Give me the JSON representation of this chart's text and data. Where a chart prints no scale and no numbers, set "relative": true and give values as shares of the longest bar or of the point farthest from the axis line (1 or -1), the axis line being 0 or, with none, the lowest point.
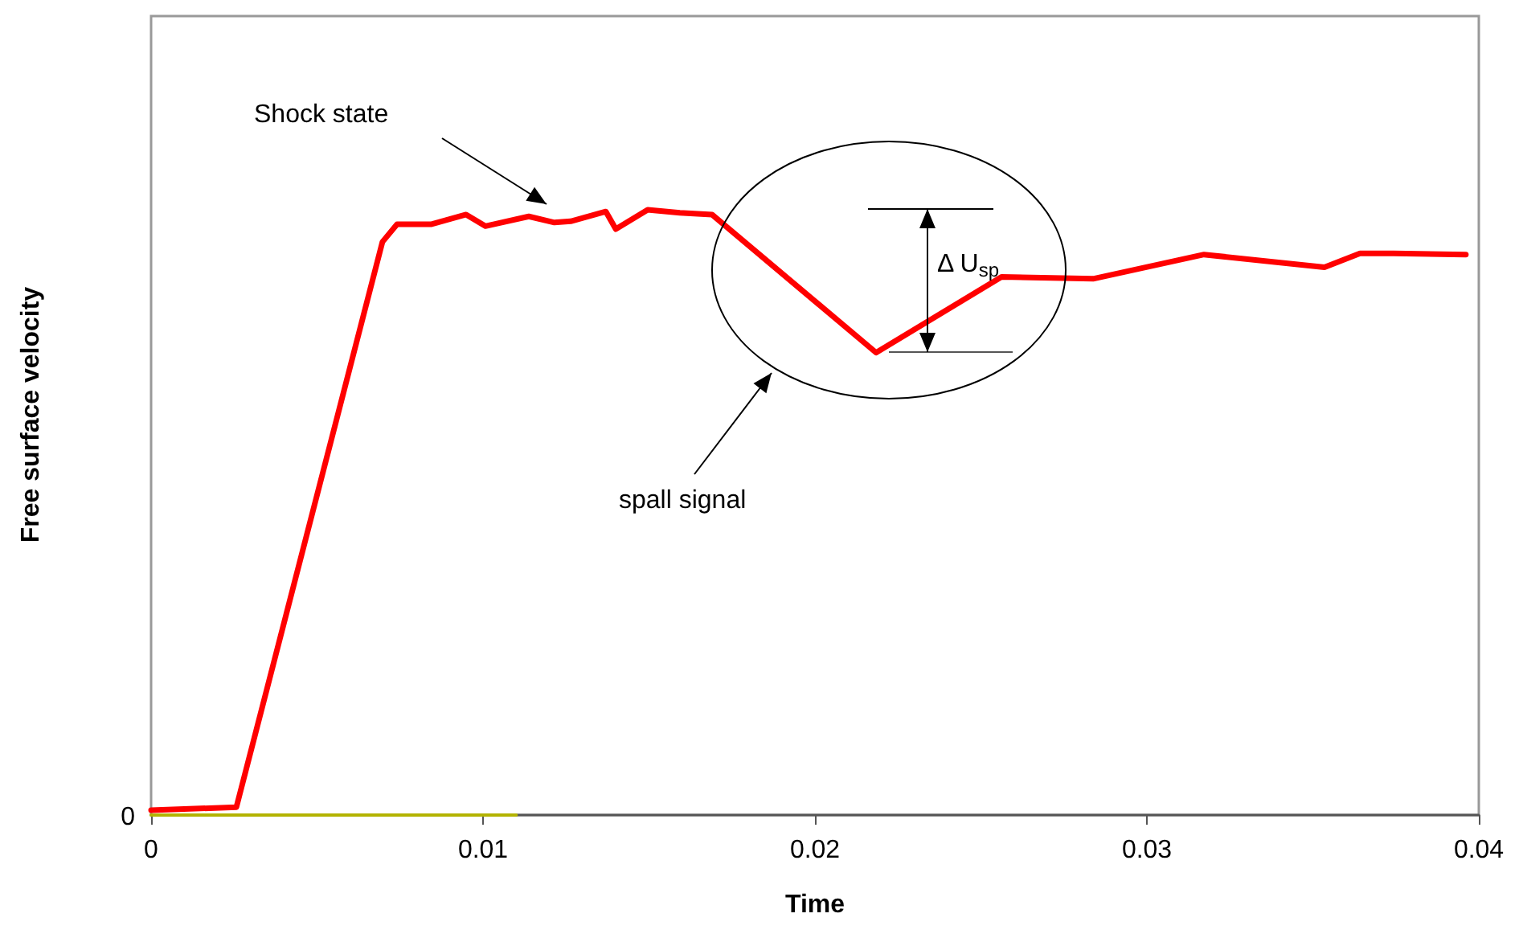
{
  "chart_data": {
    "type": "line",
    "xlabel": "Time",
    "ylabel": "Free surface velocity",
    "relative": true,
    "x": [
      0,
      0.00257,
      0.00697,
      0.00741,
      0.00843,
      0.00949,
      0.01007,
      0.01138,
      0.01215,
      0.01264,
      0.0137,
      0.014,
      0.01496,
      0.01593,
      0.0169,
      0.02184,
      0.02562,
      0.02838,
      0.03172,
      0.03535,
      0.03642,
      0.03743,
      0.03961
    ],
    "series": [
      {
        "color": "#ff0000",
        "values": [
          0.008,
          0.013,
          0.947,
          0.976,
          0.976,
          0.992,
          0.973,
          0.989,
          0.979,
          0.981,
          0.997,
          0.968,
          1,
          0.995,
          0.992,
          0.764,
          0.889,
          0.886,
          0.926,
          0.905,
          0.928,
          0.928,
          0.926
        ]
      },
      {
        "color": "#b3b300",
        "x": [
          0,
          0.011
        ],
        "values": [
          0,
          0
        ]
      }
    ],
    "xlim": [
      0,
      0.04
    ],
    "xticks": [
      0,
      0.01,
      0.02,
      0.03,
      0.04
    ],
    "annotations": [
      "Shock state",
      "spall signal",
      "Δ U$_{sp}$",
      "0"
    ],
    "grid": false,
    "marker": "none",
    "line_style": "solid"
  }
}
